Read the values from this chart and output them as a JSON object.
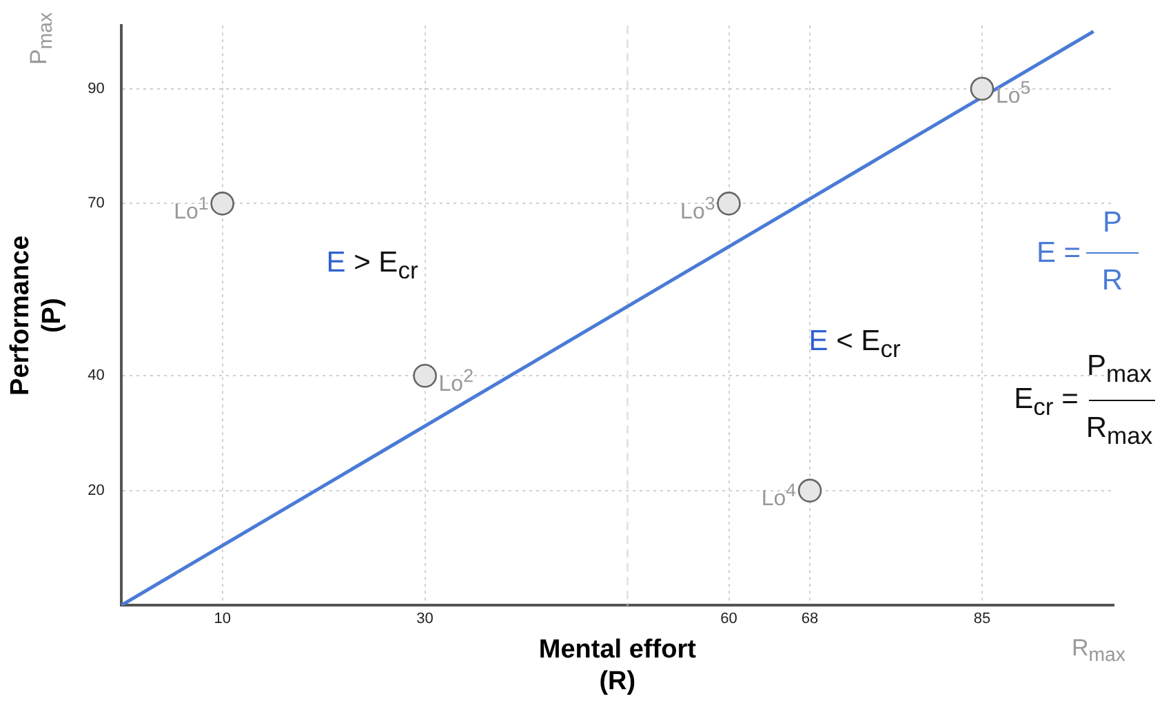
{
  "chart_data": {
    "type": "scatter",
    "xlabel": "Mental effort\n(R)",
    "ylabel": "Performance\n(P)",
    "series": [
      {
        "color": "#e6e6e6",
        "x": [
          10,
          30,
          60,
          68,
          85
        ],
        "values": [
          70,
          40,
          70,
          20,
          90
        ],
        "marker": "circle"
      },
      {
        "type": "line",
        "color": "#4a7bd6",
        "x": [
          0,
          96
        ],
        "values": [
          0,
          100
        ],
        "marker": "none",
        "line_style": "solid"
      }
    ],
    "annotations": [
      {
        "text": "Lo$^{1}$",
        "x": 10,
        "y": 70
      },
      {
        "text": "Lo$^{2}$",
        "x": 30,
        "y": 40
      },
      {
        "text": "Lo$^{3}$",
        "x": 60,
        "y": 70
      },
      {
        "text": "Lo$^{4}$",
        "x": 68,
        "y": 20
      },
      {
        "text": "Lo$^{5}$",
        "x": 85,
        "y": 90
      },
      "E > E$_{cr}$",
      "E < E$_{cr}$",
      "E =",
      "P",
      "R",
      "E$_{cr}$ =",
      "P$_{max}$",
      "R$_{max}$",
      "P$_{max}$",
      "R$_{max}$"
    ],
    "ref_lines": [
      {
        "axis": "x",
        "value": 50,
        "color": "#e4e4e4",
        "line_style": "dashed"
      }
    ],
    "xlim": [
      0,
      98
    ],
    "ylim": [
      0,
      101
    ],
    "xticks": [
      10,
      30,
      60,
      68,
      85
    ],
    "yticks": [
      20,
      40,
      70,
      90
    ],
    "grid": true,
    "legend": false
  }
}
